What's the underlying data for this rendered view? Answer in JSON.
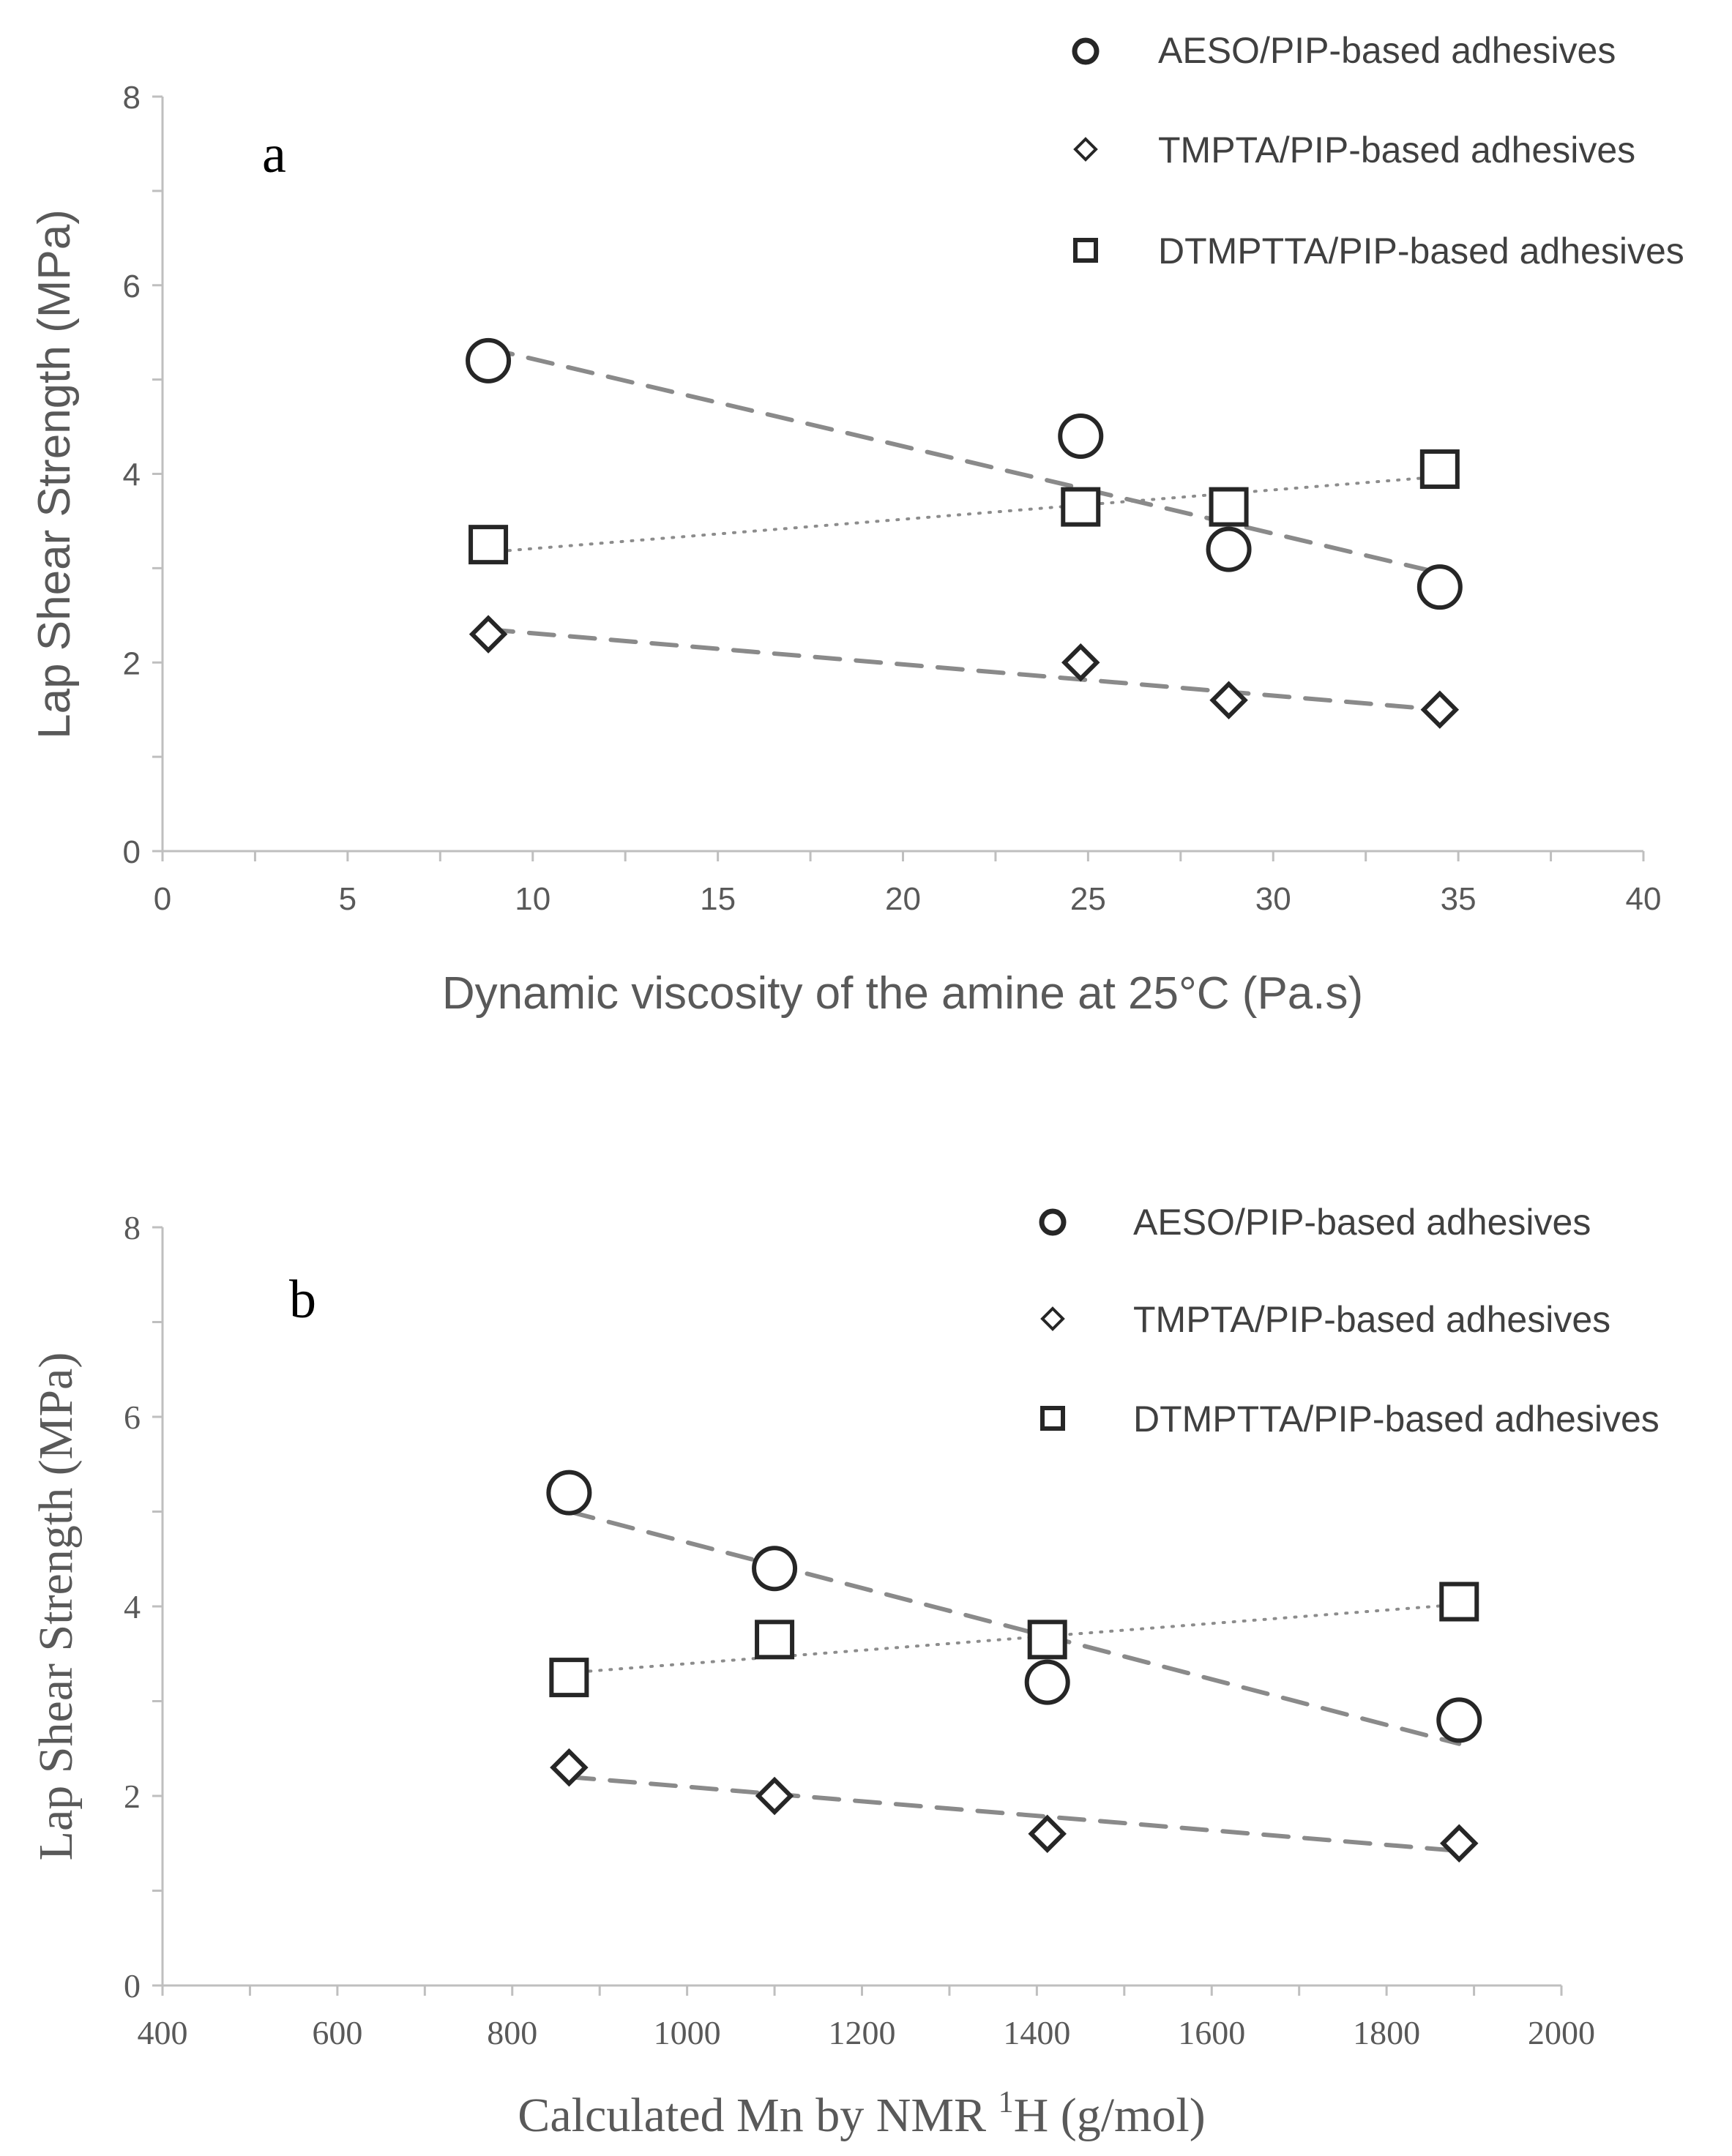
{
  "chart_data": [
    {
      "type": "scatter",
      "panel_label": "a",
      "xlabel": "Dynamic viscosity  of the amine at 25°C (Pa.s)",
      "ylabel": "Lap Shear Strength (MPa)",
      "xlim": [
        0,
        40
      ],
      "ylim": [
        0,
        8
      ],
      "x_ticks": [
        "0",
        "5",
        "10",
        "15",
        "20",
        "25",
        "30",
        "35",
        "40"
      ],
      "y_ticks": [
        "0",
        "2",
        "4",
        "6",
        "8"
      ],
      "legend_position": "top-right",
      "series": [
        {
          "name": "AESO/PIP-based adhesives",
          "marker": "circle",
          "x": [
            8.8,
            24.8,
            28.8,
            34.5
          ],
          "y": [
            5.2,
            4.4,
            3.2,
            2.8
          ],
          "trendline": {
            "style": "dashed",
            "x": [
              8.8,
              34.5
            ],
            "y": [
              5.33,
              2.95
            ]
          }
        },
        {
          "name": "TMPTA/PIP-based adhesives",
          "marker": "diamond",
          "x": [
            8.8,
            24.8,
            28.8,
            34.5
          ],
          "y": [
            2.3,
            2.0,
            1.6,
            1.5
          ],
          "trendline": {
            "style": "dashed",
            "x": [
              8.8,
              34.5
            ],
            "y": [
              2.35,
              1.5
            ]
          }
        },
        {
          "name": "DTMPTTA/PIP-based adhesives",
          "marker": "square",
          "x": [
            8.8,
            24.8,
            28.8,
            34.5
          ],
          "y": [
            3.25,
            3.65,
            3.65,
            4.05
          ],
          "trendline": {
            "style": "dotted",
            "x": [
              8.8,
              34.5
            ],
            "y": [
              3.17,
              3.97
            ]
          }
        }
      ]
    },
    {
      "type": "scatter",
      "panel_label": "b",
      "xlabel": "Calculated Mn by NMR ",
      "xlabel_sup": "1",
      "xlabel_end": "H (g/mol)",
      "ylabel": "Lap Shear Strength (MPa)",
      "xlim": [
        400,
        2000
      ],
      "ylim": [
        0,
        8
      ],
      "x_ticks": [
        "400",
        "600",
        "800",
        "1000",
        "1200",
        "1400",
        "1600",
        "1800",
        "2000"
      ],
      "y_ticks": [
        "0",
        "2",
        "4",
        "6",
        "8"
      ],
      "legend_position": "top-right",
      "series": [
        {
          "name": "AESO/PIP-based adhesives",
          "marker": "circle",
          "x": [
            865,
            1100,
            1412,
            1883
          ],
          "y": [
            5.2,
            4.4,
            3.2,
            2.8
          ],
          "trendline": {
            "style": "dashed",
            "x": [
              865,
              1883
            ],
            "y": [
              5.0,
              2.55
            ]
          }
        },
        {
          "name": "TMPTA/PIP-based adhesives",
          "marker": "diamond",
          "x": [
            865,
            1100,
            1412,
            1883
          ],
          "y": [
            2.3,
            2.0,
            1.6,
            1.5
          ],
          "trendline": {
            "style": "dashed",
            "x": [
              865,
              1883
            ],
            "y": [
              2.2,
              1.42
            ]
          }
        },
        {
          "name": "DTMPTTA/PIP-based adhesives",
          "marker": "square",
          "x": [
            865,
            1100,
            1412,
            1883
          ],
          "y": [
            3.25,
            3.65,
            3.65,
            4.05
          ],
          "trendline": {
            "style": "dotted",
            "x": [
              865,
              1883
            ],
            "y": [
              3.3,
              4.02
            ]
          }
        }
      ]
    }
  ]
}
